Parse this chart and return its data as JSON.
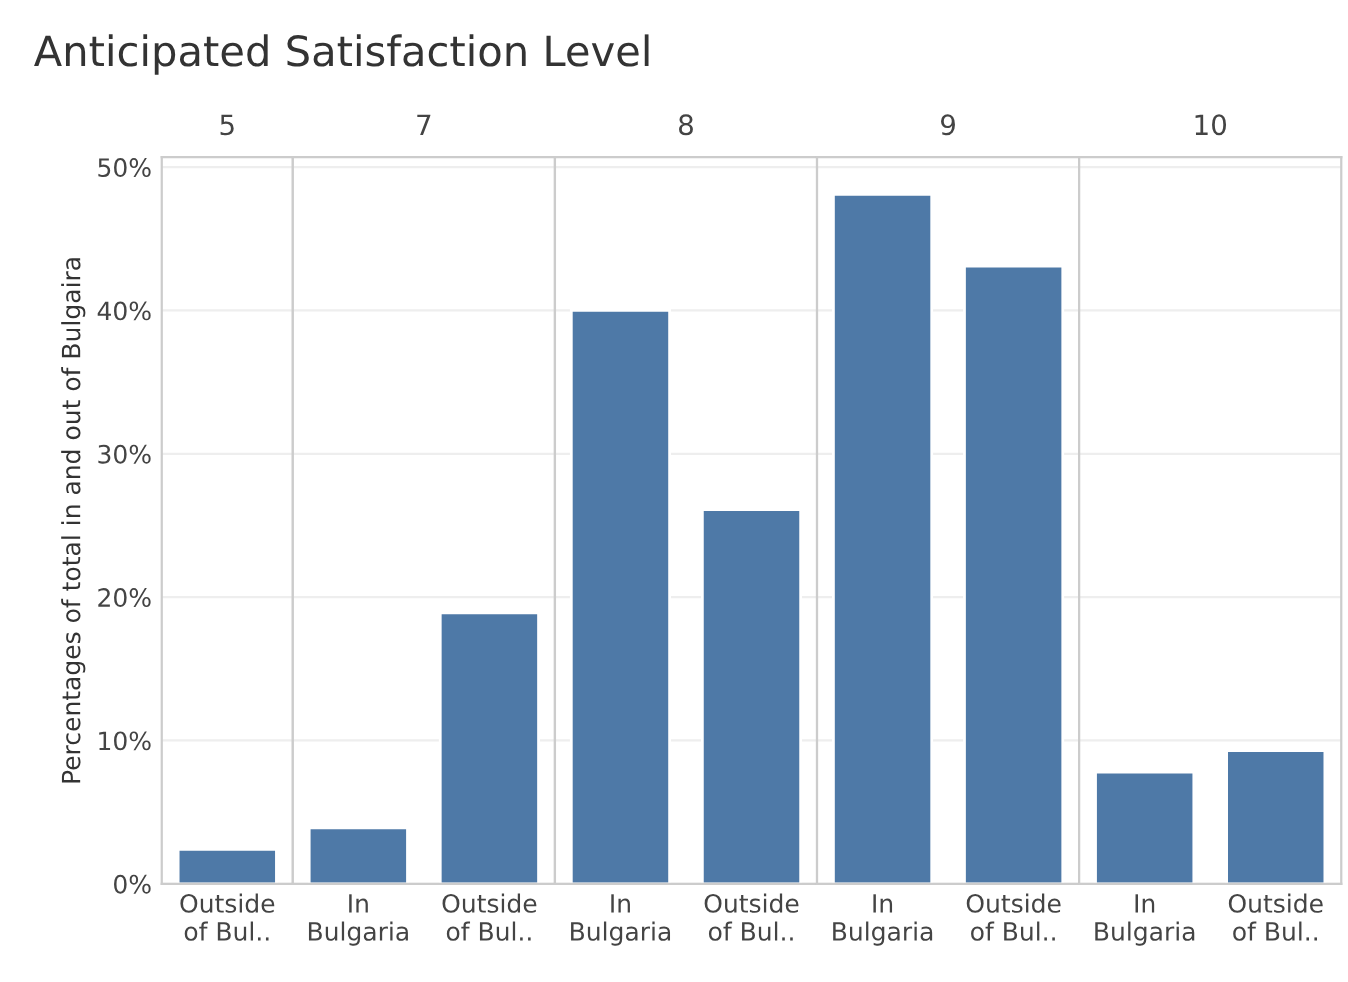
{
  "chart_data": [
    {
      "type": "bar",
      "title": "5",
      "annotations": [
        "Anticipated Satisfaction Level"
      ],
      "ylabel": "Percentages of total in and out of Bulgaira",
      "categories": [
        "Outside of Bul.."
      ],
      "values": [
        2.4
      ],
      "color": "#4e79a7",
      "ylim": [
        0,
        50.7
      ],
      "yticks": [
        {
          "value": 0,
          "label": "0%"
        },
        {
          "value": 10,
          "label": "10%"
        },
        {
          "value": 20,
          "label": "20%"
        },
        {
          "value": 30,
          "label": "30%"
        },
        {
          "value": 40,
          "label": "40%"
        },
        {
          "value": 50,
          "label": "50%"
        }
      ],
      "grid": "y"
    },
    {
      "type": "bar",
      "title": "7",
      "categories": [
        "In Bulgaria",
        "Outside of Bul.."
      ],
      "values": [
        3.9,
        18.9
      ],
      "color": "#4e79a7",
      "ylim": [
        0,
        50.7
      ],
      "tick_labels": "x",
      "grid": "y"
    },
    {
      "type": "bar",
      "title": "8",
      "categories": [
        "In Bulgaria",
        "Outside of Bul.."
      ],
      "values": [
        40.0,
        26.1
      ],
      "color": "#4e79a7",
      "ylim": [
        0,
        50.7
      ],
      "tick_labels": "x",
      "grid": "y"
    },
    {
      "type": "bar",
      "title": "9",
      "categories": [
        "In Bulgaria",
        "Outside of Bul.."
      ],
      "values": [
        48.1,
        43.1
      ],
      "color": "#4e79a7",
      "ylim": [
        0,
        50.7
      ],
      "tick_labels": "x",
      "grid": "y"
    },
    {
      "type": "bar",
      "title": "10",
      "categories": [
        "In Bulgaria",
        "Outside of Bul.."
      ],
      "values": [
        7.8,
        9.3
      ],
      "color": "#4e79a7",
      "ylim": [
        0,
        50.7
      ],
      "tick_labels": "x",
      "grid": "y"
    }
  ]
}
